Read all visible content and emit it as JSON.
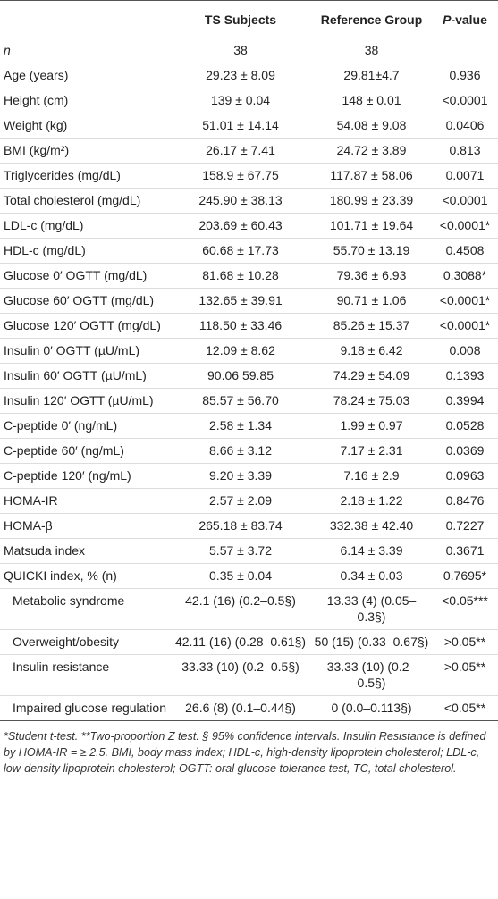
{
  "table": {
    "header": [
      "TS Subjects",
      "Reference Group",
      "P-value"
    ],
    "rows": [
      [
        "n",
        "38",
        "38",
        ""
      ],
      [
        "Age (years)",
        "29.23 ± 8.09",
        "29.81±4.7",
        "0.936"
      ],
      [
        "Height (cm)",
        "139 ± 0.04",
        "148 ± 0.01",
        "<0.0001"
      ],
      [
        "Weight (kg)",
        "51.01 ± 14.14",
        "54.08 ± 9.08",
        "0.0406"
      ],
      [
        "BMI (kg/m²)",
        "26.17 ± 7.41",
        "24.72 ± 3.89",
        "0.813"
      ],
      [
        "Triglycerides (mg/dL)",
        "158.9 ± 67.75",
        "117.87 ± 58.06",
        "0.0071"
      ],
      [
        "Total cholesterol (mg/dL)",
        "245.90 ± 38.13",
        "180.99 ± 23.39",
        "<0.0001"
      ],
      [
        "LDL-c (mg/dL)",
        "203.69 ± 60.43",
        "101.71 ± 19.64",
        "<0.0001*"
      ],
      [
        "HDL-c (mg/dL)",
        "60.68 ± 17.73",
        "55.70 ± 13.19",
        "0.4508"
      ],
      [
        "Glucose 0′ OGTT (mg/dL)",
        "81.68 ± 10.28",
        "79.36 ± 6.93",
        "0.3088*"
      ],
      [
        "Glucose 60′ OGTT (mg/dL)",
        "132.65 ± 39.91",
        "90.71 ± 1.06",
        "<0.0001*"
      ],
      [
        "Glucose 120′ OGTT (mg/dL)",
        "118.50 ± 33.46",
        "85.26 ± 15.37",
        "<0.0001*"
      ],
      [
        "Insulin 0′ OGTT (µU/mL)",
        "12.09 ± 8.62",
        "9.18 ± 6.42",
        "0.008"
      ],
      [
        "Insulin 60′ OGTT (µU/mL)",
        "90.06 59.85",
        "74.29 ± 54.09",
        "0.1393"
      ],
      [
        "Insulin 120′ OGTT (µU/mL)",
        "85.57 ± 56.70",
        "78.24 ± 75.03",
        "0.3994"
      ],
      [
        "C-peptide 0′ (ng/mL)",
        "2.58 ± 1.34",
        "1.99 ± 0.97",
        "0.0528"
      ],
      [
        "C-peptide 60′ (ng/mL)",
        "8.66 ± 3.12",
        "7.17 ± 2.31",
        "0.0369"
      ],
      [
        "C-peptide 120′ (ng/mL)",
        "9.20 ± 3.39",
        "7.16 ± 2.9",
        "0.0963"
      ],
      [
        "HOMA-IR",
        "2.57 ± 2.09",
        "2.18 ± 1.22",
        "0.8476"
      ],
      [
        "HOMA-β",
        "265.18 ± 83.74",
        "332.38 ± 42.40",
        "0.7227"
      ],
      [
        "Matsuda index",
        "5.57 ± 3.72",
        "6.14 ± 3.39",
        "0.3671"
      ],
      [
        "QUICKI index, % (n)",
        "0.35 ± 0.04",
        "0.34 ± 0.03",
        "0.7695*"
      ]
    ],
    "subrows": [
      [
        "Metabolic syndrome",
        "42.1 (16) (0.2–0.5§)",
        "13.33 (4) (0.05–0.3§)",
        "<0.05***"
      ],
      [
        "Overweight/obesity",
        "42.11 (16) (0.28–0.61§)",
        "50 (15) (0.33–0.67§)",
        ">0.05**"
      ],
      [
        "Insulin resistance",
        "33.33 (10) (0.2–0.5§)",
        "33.33 (10) (0.2–0.5§)",
        ">0.05**"
      ],
      [
        "Impaired glucose regulation",
        "26.6 (8) (0.1–0.44§)",
        "0 (0.0–0.113§)",
        "<0.05**"
      ]
    ],
    "footnote": "*Student t-test. **Two-proportion Z test. § 95% confidence intervals. Insulin Resistance is defined by HOMA-IR = ≥ 2.5. BMI, body mass index; HDL-c, high-density lipoprotein cholesterol; LDL-c, low-density lipoprotein cholesterol; OGTT: oral glucose tolerance test, TC, total cholesterol."
  }
}
